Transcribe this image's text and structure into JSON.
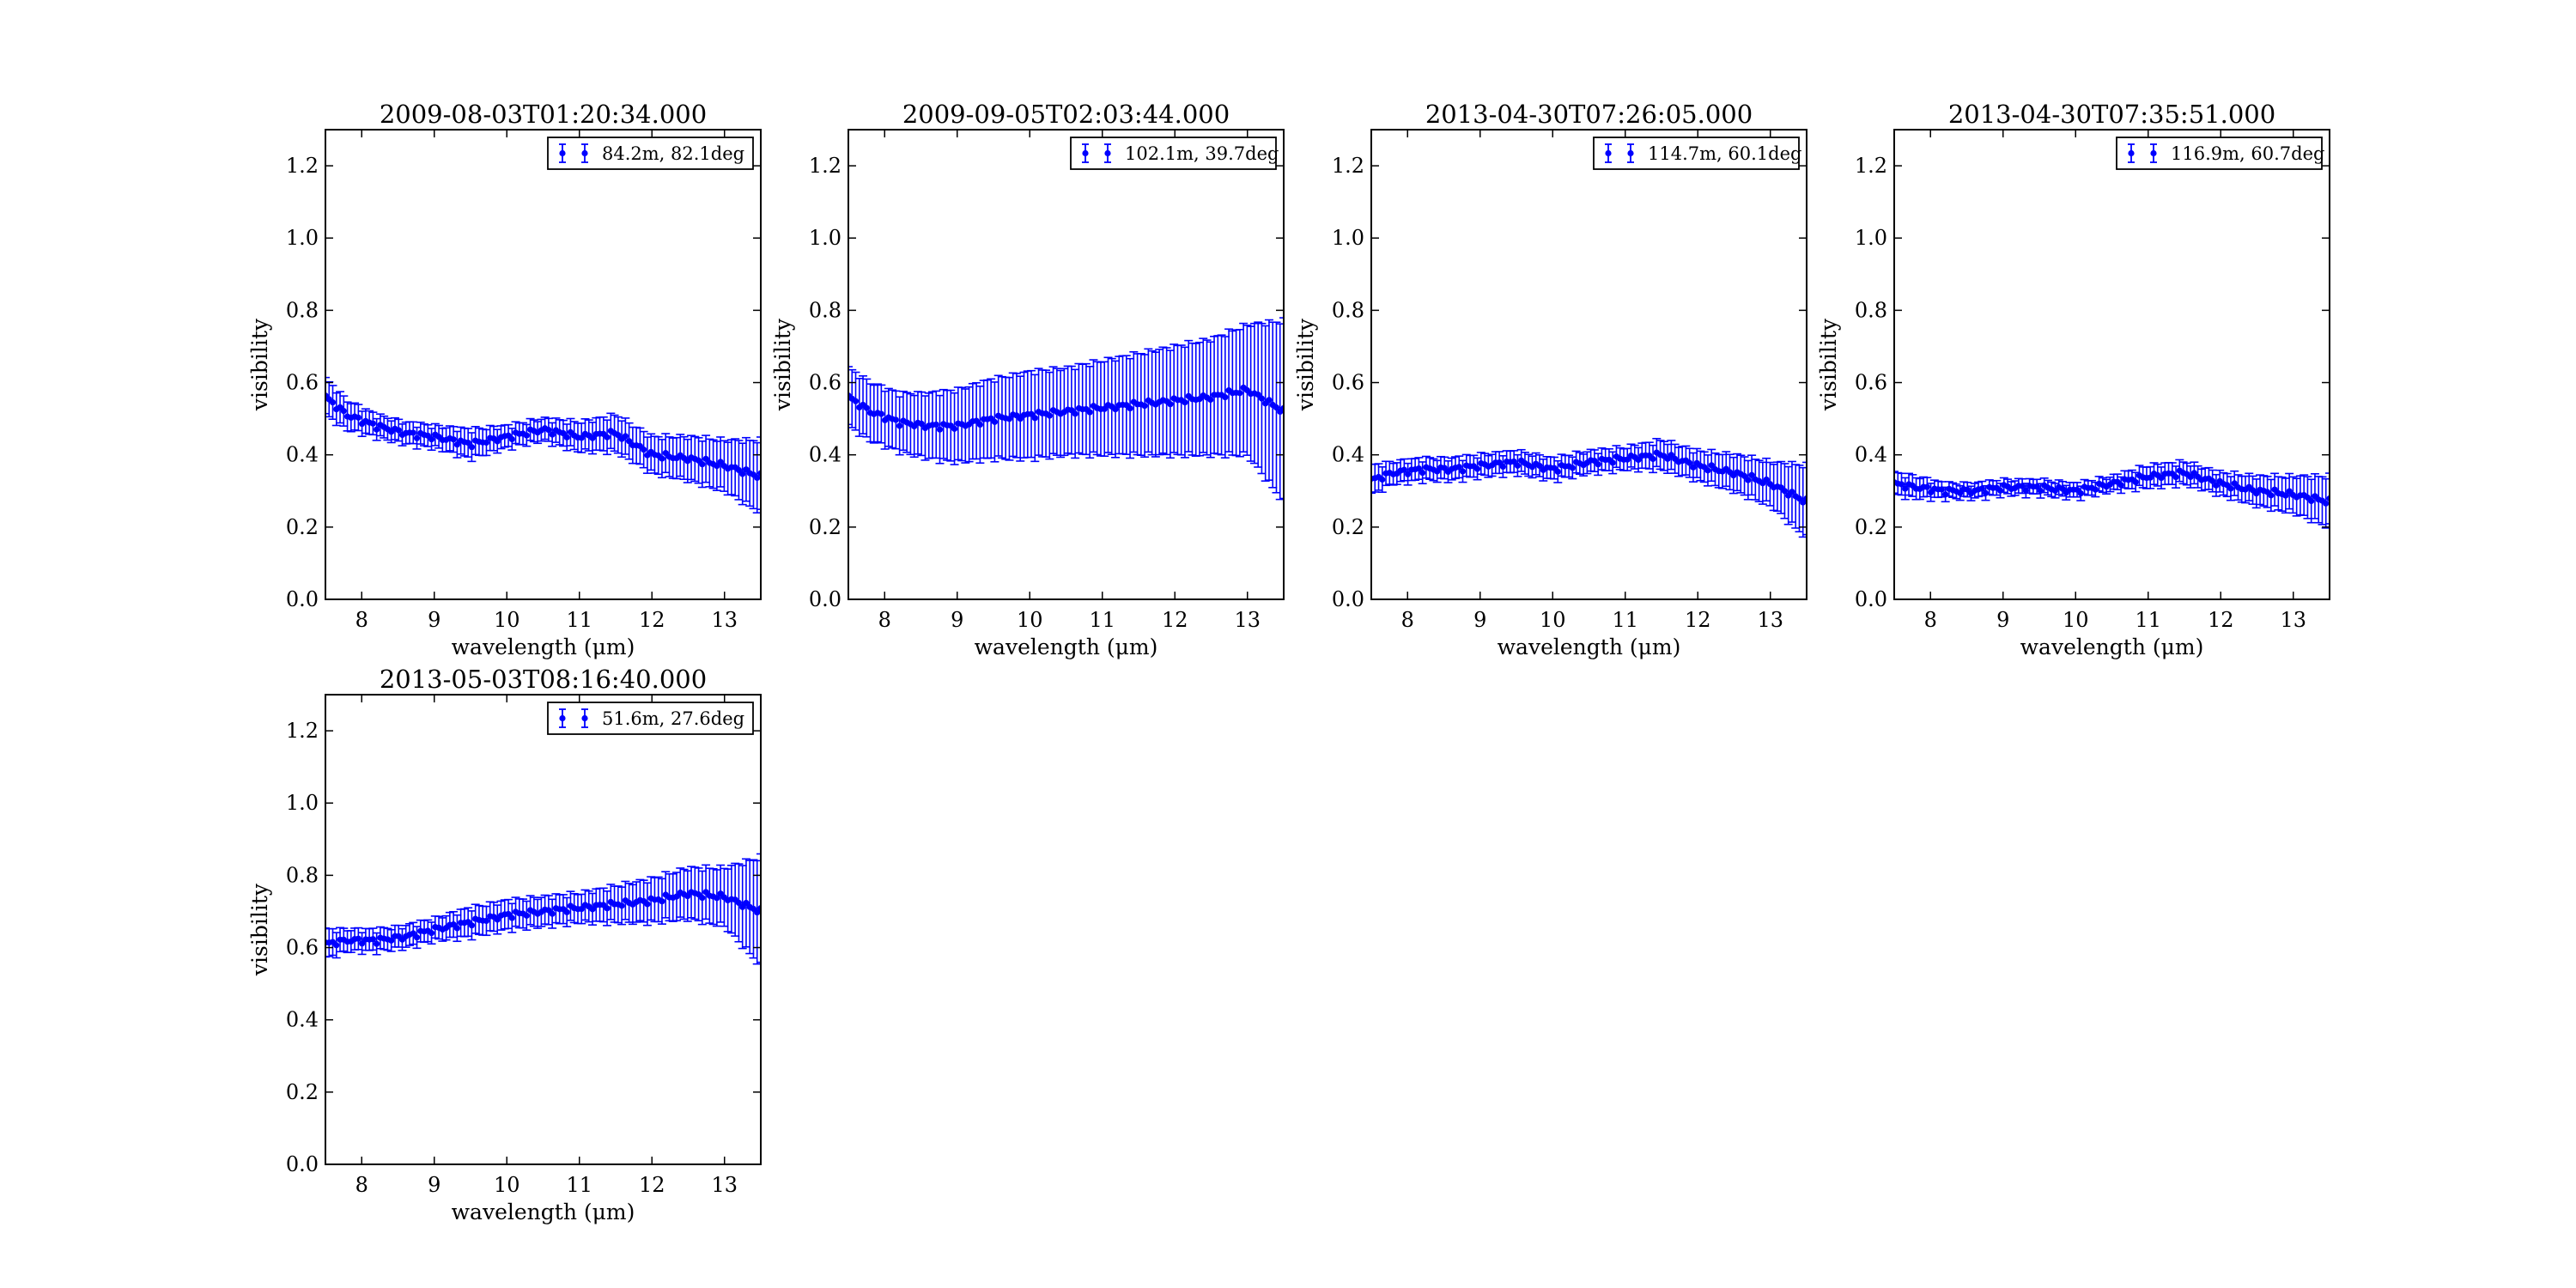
{
  "figure": {
    "xlabel": "wavelength (μm)",
    "ylabel": "visibility"
  },
  "chart_data": [
    {
      "type": "scatter",
      "title": "2009-08-03T01:20:34.000",
      "xlabel": "wavelength (μm)",
      "ylabel": "visibility",
      "xlim": [
        7.5,
        13.5
      ],
      "ylim": [
        0.0,
        1.3
      ],
      "xticks": [
        8,
        9,
        10,
        11,
        12,
        13
      ],
      "yticks": [
        0.0,
        0.2,
        0.4,
        0.6,
        0.8,
        1.0,
        1.2
      ],
      "xtick_labels": [
        "8",
        "9",
        "10",
        "11",
        "12",
        "13"
      ],
      "ytick_labels": [
        "0.0",
        "0.2",
        "0.4",
        "0.6",
        "0.8",
        "1.0",
        "1.2"
      ],
      "legend_position": "top-right",
      "series": [
        {
          "name": "84.2m, 82.1deg",
          "color": "#0000ff",
          "error_bars": true,
          "profile": {
            "x": [
              7.5,
              7.8,
              8.2,
              8.6,
              9.0,
              9.5,
              10.0,
              10.5,
              11.0,
              11.5,
              12.0,
              12.5,
              13.0,
              13.5
            ],
            "y": [
              0.56,
              0.51,
              0.48,
              0.46,
              0.45,
              0.43,
              0.45,
              0.47,
              0.45,
              0.46,
              0.4,
              0.39,
              0.37,
              0.34
            ],
            "yerr": [
              0.05,
              0.04,
              0.03,
              0.03,
              0.03,
              0.04,
              0.03,
              0.03,
              0.04,
              0.05,
              0.05,
              0.06,
              0.07,
              0.1
            ]
          }
        }
      ]
    },
    {
      "type": "scatter",
      "title": "2009-09-05T02:03:44.000",
      "xlabel": "wavelength (μm)",
      "ylabel": "visibility",
      "xlim": [
        7.5,
        13.5
      ],
      "ylim": [
        0.0,
        1.3
      ],
      "xticks": [
        8,
        9,
        10,
        11,
        12,
        13
      ],
      "yticks": [
        0.0,
        0.2,
        0.4,
        0.6,
        0.8,
        1.0,
        1.2
      ],
      "xtick_labels": [
        "8",
        "9",
        "10",
        "11",
        "12",
        "13"
      ],
      "ytick_labels": [
        "0.0",
        "0.2",
        "0.4",
        "0.6",
        "0.8",
        "1.0",
        "1.2"
      ],
      "legend_position": "top-right",
      "series": [
        {
          "name": "102.1m, 39.7deg",
          "color": "#0000ff",
          "error_bars": true,
          "profile": {
            "x": [
              7.5,
              7.8,
              8.2,
              8.6,
              9.0,
              9.5,
              10.0,
              10.5,
              11.0,
              11.5,
              12.0,
              12.5,
              13.0,
              13.5
            ],
            "y": [
              0.56,
              0.52,
              0.49,
              0.48,
              0.48,
              0.5,
              0.51,
              0.52,
              0.53,
              0.54,
              0.55,
              0.56,
              0.58,
              0.52
            ],
            "yerr": [
              0.08,
              0.08,
              0.08,
              0.09,
              0.1,
              0.11,
              0.12,
              0.12,
              0.13,
              0.14,
              0.15,
              0.16,
              0.18,
              0.25
            ]
          }
        }
      ]
    },
    {
      "type": "scatter",
      "title": "2013-04-30T07:26:05.000",
      "xlabel": "wavelength (μm)",
      "ylabel": "visibility",
      "xlim": [
        7.5,
        13.5
      ],
      "ylim": [
        0.0,
        1.3
      ],
      "xticks": [
        8,
        9,
        10,
        11,
        12,
        13
      ],
      "yticks": [
        0.0,
        0.2,
        0.4,
        0.6,
        0.8,
        1.0,
        1.2
      ],
      "xtick_labels": [
        "8",
        "9",
        "10",
        "11",
        "12",
        "13"
      ],
      "ytick_labels": [
        "0.0",
        "0.2",
        "0.4",
        "0.6",
        "0.8",
        "1.0",
        "1.2"
      ],
      "legend_position": "top-right",
      "series": [
        {
          "name": "114.7m, 60.1deg",
          "color": "#0000ff",
          "error_bars": true,
          "profile": {
            "x": [
              7.5,
              7.8,
              8.2,
              8.6,
              9.0,
              9.5,
              10.0,
              10.5,
              11.0,
              11.5,
              12.0,
              12.5,
              13.0,
              13.5
            ],
            "y": [
              0.33,
              0.35,
              0.36,
              0.36,
              0.37,
              0.38,
              0.36,
              0.38,
              0.39,
              0.4,
              0.37,
              0.35,
              0.32,
              0.27
            ],
            "yerr": [
              0.04,
              0.03,
              0.03,
              0.03,
              0.03,
              0.03,
              0.03,
              0.03,
              0.03,
              0.04,
              0.04,
              0.05,
              0.06,
              0.1
            ]
          }
        }
      ]
    },
    {
      "type": "scatter",
      "title": "2013-04-30T07:35:51.000",
      "xlabel": "wavelength (μm)",
      "ylabel": "visibility",
      "xlim": [
        7.5,
        13.5
      ],
      "ylim": [
        0.0,
        1.3
      ],
      "xticks": [
        8,
        9,
        10,
        11,
        12,
        13
      ],
      "yticks": [
        0.0,
        0.2,
        0.4,
        0.6,
        0.8,
        1.0,
        1.2
      ],
      "xtick_labels": [
        "8",
        "9",
        "10",
        "11",
        "12",
        "13"
      ],
      "ytick_labels": [
        "0.0",
        "0.2",
        "0.4",
        "0.6",
        "0.8",
        "1.0",
        "1.2"
      ],
      "legend_position": "top-right",
      "series": [
        {
          "name": "116.9m, 60.7deg",
          "color": "#0000ff",
          "error_bars": true,
          "profile": {
            "x": [
              7.5,
              7.8,
              8.2,
              8.6,
              9.0,
              9.5,
              10.0,
              10.5,
              11.0,
              11.5,
              12.0,
              12.5,
              13.0,
              13.5
            ],
            "y": [
              0.32,
              0.31,
              0.3,
              0.3,
              0.31,
              0.31,
              0.3,
              0.32,
              0.34,
              0.35,
              0.32,
              0.3,
              0.29,
              0.27
            ],
            "yerr": [
              0.03,
              0.03,
              0.02,
              0.02,
              0.02,
              0.02,
              0.02,
              0.02,
              0.03,
              0.03,
              0.03,
              0.04,
              0.05,
              0.07
            ]
          }
        }
      ]
    },
    {
      "type": "scatter",
      "title": "2013-05-03T08:16:40.000",
      "xlabel": "wavelength (μm)",
      "ylabel": "visibility",
      "xlim": [
        7.5,
        13.5
      ],
      "ylim": [
        0.0,
        1.3
      ],
      "xticks": [
        8,
        9,
        10,
        11,
        12,
        13
      ],
      "yticks": [
        0.0,
        0.2,
        0.4,
        0.6,
        0.8,
        1.0,
        1.2
      ],
      "xtick_labels": [
        "8",
        "9",
        "10",
        "11",
        "12",
        "13"
      ],
      "ytick_labels": [
        "0.0",
        "0.2",
        "0.4",
        "0.6",
        "0.8",
        "1.0",
        "1.2"
      ],
      "legend_position": "top-right",
      "series": [
        {
          "name": "51.6m, 27.6deg",
          "color": "#0000ff",
          "error_bars": true,
          "profile": {
            "x": [
              7.5,
              7.8,
              8.2,
              8.6,
              9.0,
              9.5,
              10.0,
              10.5,
              11.0,
              11.5,
              12.0,
              12.5,
              13.0,
              13.5
            ],
            "y": [
              0.61,
              0.62,
              0.62,
              0.63,
              0.65,
              0.67,
              0.69,
              0.7,
              0.71,
              0.72,
              0.73,
              0.75,
              0.74,
              0.7
            ],
            "yerr": [
              0.04,
              0.03,
              0.03,
              0.03,
              0.03,
              0.04,
              0.04,
              0.04,
              0.04,
              0.05,
              0.06,
              0.07,
              0.08,
              0.15
            ]
          }
        }
      ]
    }
  ]
}
